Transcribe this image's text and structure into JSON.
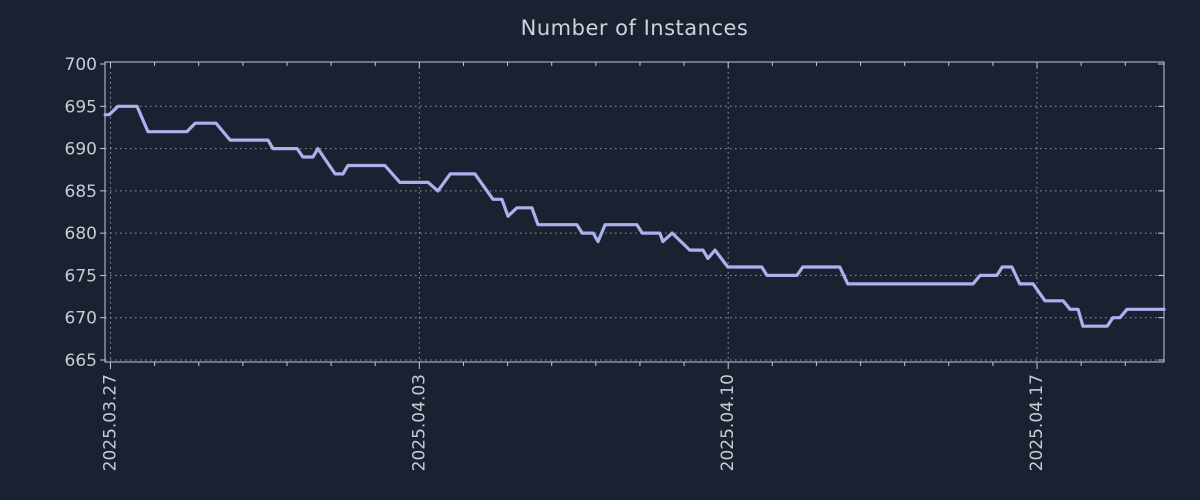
{
  "chart_data": {
    "type": "line",
    "title": "Number of Instances",
    "x_axis": {
      "tick_labels": [
        "2025.03.27",
        "2025.04.03",
        "2025.04.10",
        "2025.04.17"
      ],
      "tick_days": [
        0,
        7,
        14,
        21
      ],
      "minor_day_step": 1,
      "minor_day_start": 0,
      "minor_day_end": 23,
      "range_days": [
        -0.125,
        23.88
      ],
      "grid": "major-only"
    },
    "y_axis": {
      "min": 665,
      "max": 700,
      "tick_step": 5,
      "tick_labels": [
        "700",
        "695",
        "690",
        "685",
        "680",
        "675",
        "670",
        "665"
      ],
      "grid": "dotted"
    },
    "series": [
      {
        "name": "instances",
        "color": "#abb0ef",
        "points": [
          [
            -0.12,
            694
          ],
          [
            -0.03,
            694
          ],
          [
            0.17,
            695
          ],
          [
            0.6,
            695
          ],
          [
            0.85,
            692
          ],
          [
            1.73,
            692
          ],
          [
            1.92,
            693
          ],
          [
            2.39,
            693
          ],
          [
            2.71,
            691
          ],
          [
            3.57,
            691
          ],
          [
            3.68,
            690
          ],
          [
            4.23,
            690
          ],
          [
            4.36,
            689
          ],
          [
            4.59,
            689
          ],
          [
            4.7,
            690
          ],
          [
            5.09,
            687
          ],
          [
            5.27,
            687
          ],
          [
            5.38,
            688
          ],
          [
            6.22,
            688
          ],
          [
            6.56,
            686
          ],
          [
            7.2,
            686
          ],
          [
            7.42,
            685
          ],
          [
            7.7,
            687
          ],
          [
            8.26,
            687
          ],
          [
            8.67,
            684
          ],
          [
            8.87,
            684
          ],
          [
            9.01,
            682
          ],
          [
            9.21,
            683
          ],
          [
            9.55,
            683
          ],
          [
            9.69,
            681
          ],
          [
            10.57,
            681
          ],
          [
            10.69,
            680
          ],
          [
            10.94,
            680
          ],
          [
            11.05,
            679
          ],
          [
            11.21,
            681
          ],
          [
            11.93,
            681
          ],
          [
            12.05,
            680
          ],
          [
            12.45,
            680
          ],
          [
            12.52,
            679
          ],
          [
            12.73,
            680
          ],
          [
            13.13,
            678
          ],
          [
            13.43,
            678
          ],
          [
            13.54,
            677
          ],
          [
            13.7,
            678
          ],
          [
            13.99,
            676
          ],
          [
            14.76,
            676
          ],
          [
            14.88,
            675
          ],
          [
            15.56,
            675
          ],
          [
            15.69,
            676
          ],
          [
            16.53,
            676
          ],
          [
            16.71,
            674
          ],
          [
            19.55,
            674
          ],
          [
            19.71,
            675
          ],
          [
            20.09,
            675
          ],
          [
            20.21,
            676
          ],
          [
            20.43,
            676
          ],
          [
            20.61,
            674
          ],
          [
            20.91,
            674
          ],
          [
            21.18,
            672
          ],
          [
            21.59,
            672
          ],
          [
            21.75,
            671
          ],
          [
            21.93,
            671
          ],
          [
            22.04,
            669
          ],
          [
            22.59,
            669
          ],
          [
            22.72,
            670
          ],
          [
            22.88,
            670
          ],
          [
            23.04,
            671
          ],
          [
            23.88,
            671
          ]
        ]
      }
    ],
    "colors": {
      "background": "#1a2231",
      "grid": "#8f959d",
      "spine": "#c6cbd1",
      "text": "#c6ccd3",
      "line": "#abb0ef"
    }
  }
}
